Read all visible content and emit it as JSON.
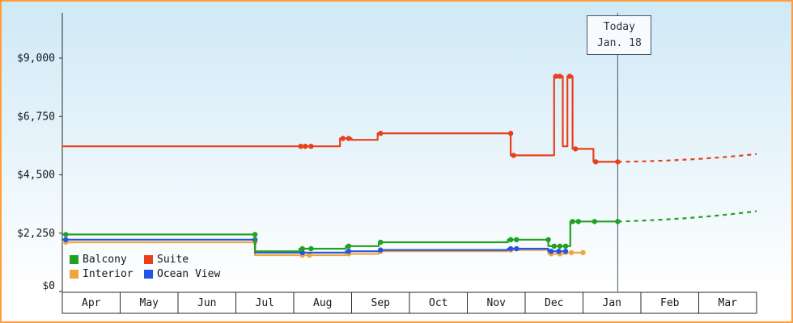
{
  "chart_data": {
    "type": "line",
    "style": "step",
    "title": "",
    "x_axis": {
      "labels": [
        "Apr",
        "May",
        "Jun",
        "Jul",
        "Aug",
        "Sep",
        "Oct",
        "Nov",
        "Dec",
        "Jan",
        "Feb",
        "Mar"
      ]
    },
    "y_axis": {
      "min": 0,
      "max": 9000,
      "ticks": [
        {
          "value": 0,
          "label": "$0"
        },
        {
          "value": 2250,
          "label": "$2,250"
        },
        {
          "value": 4500,
          "label": "$4,500"
        },
        {
          "value": 6750,
          "label": "$6,750"
        },
        {
          "value": 9000,
          "label": "$9,000"
        }
      ]
    },
    "today_marker": {
      "line1": "Today",
      "line2": "Jan. 18",
      "month_x": 9.6
    },
    "series": [
      {
        "name": "Balcony",
        "color": "#22a022",
        "path": [
          [
            0,
            2200
          ],
          [
            3.33,
            2200
          ],
          [
            3.33,
            1550
          ],
          [
            4.1,
            1550
          ],
          [
            4.1,
            1650
          ],
          [
            4.9,
            1650
          ],
          [
            4.9,
            1750
          ],
          [
            5.47,
            1750
          ],
          [
            5.47,
            1900
          ],
          [
            7.7,
            1900
          ],
          [
            7.7,
            2000
          ],
          [
            8.4,
            2000
          ],
          [
            8.4,
            1750
          ],
          [
            8.78,
            1750
          ],
          [
            8.78,
            2700
          ],
          [
            9.6,
            2700
          ]
        ],
        "dots": [
          [
            0.06,
            2200
          ],
          [
            3.33,
            2200
          ],
          [
            4.15,
            1650
          ],
          [
            4.3,
            1650
          ],
          [
            4.95,
            1750
          ],
          [
            5.5,
            1900
          ],
          [
            7.75,
            2000
          ],
          [
            7.85,
            2000
          ],
          [
            8.4,
            2000
          ],
          [
            8.5,
            1750
          ],
          [
            8.6,
            1750
          ],
          [
            8.7,
            1750
          ],
          [
            8.82,
            2700
          ],
          [
            8.92,
            2700
          ],
          [
            9.2,
            2700
          ],
          [
            9.6,
            2700
          ]
        ],
        "projection": {
          "control": [
            10.9,
            2780
          ],
          "to": [
            12,
            3100
          ]
        }
      },
      {
        "name": "Suite",
        "color": "#e8401c",
        "path": [
          [
            0,
            5600
          ],
          [
            4.8,
            5600
          ],
          [
            4.8,
            5900
          ],
          [
            5.0,
            5900
          ],
          [
            5.0,
            5850
          ],
          [
            5.45,
            5850
          ],
          [
            5.45,
            6100
          ],
          [
            7.75,
            6100
          ],
          [
            7.75,
            5250
          ],
          [
            8.5,
            5250
          ],
          [
            8.5,
            8300
          ],
          [
            8.65,
            8300
          ],
          [
            8.65,
            5600
          ],
          [
            8.73,
            5600
          ],
          [
            8.73,
            8300
          ],
          [
            8.82,
            8300
          ],
          [
            8.82,
            5500
          ],
          [
            9.18,
            5500
          ],
          [
            9.18,
            5000
          ],
          [
            9.6,
            5000
          ]
        ],
        "dots": [
          [
            4.12,
            5600
          ],
          [
            4.2,
            5600
          ],
          [
            4.3,
            5600
          ],
          [
            4.85,
            5900
          ],
          [
            4.95,
            5900
          ],
          [
            5.5,
            6100
          ],
          [
            7.75,
            6100
          ],
          [
            7.8,
            5250
          ],
          [
            8.53,
            8300
          ],
          [
            8.6,
            8300
          ],
          [
            8.77,
            8300
          ],
          [
            8.87,
            5500
          ],
          [
            9.22,
            5000
          ],
          [
            9.6,
            5000
          ]
        ],
        "projection": {
          "control": [
            10.9,
            5040
          ],
          "to": [
            12,
            5300
          ]
        }
      },
      {
        "name": "Interior",
        "color": "#efa63c",
        "path": [
          [
            0,
            1900
          ],
          [
            3.33,
            1900
          ],
          [
            3.33,
            1400
          ],
          [
            4.9,
            1400
          ],
          [
            4.9,
            1450
          ],
          [
            5.47,
            1450
          ],
          [
            5.47,
            1550
          ],
          [
            7.7,
            1550
          ],
          [
            7.7,
            1600
          ],
          [
            8.4,
            1600
          ],
          [
            8.4,
            1450
          ],
          [
            8.72,
            1450
          ],
          [
            8.72,
            1500
          ],
          [
            9.0,
            1500
          ]
        ],
        "dots": [
          [
            0.06,
            1900
          ],
          [
            3.33,
            1900
          ],
          [
            4.15,
            1400
          ],
          [
            4.27,
            1400
          ],
          [
            4.95,
            1450
          ],
          [
            5.5,
            1550
          ],
          [
            7.75,
            1600
          ],
          [
            8.45,
            1450
          ],
          [
            8.6,
            1450
          ],
          [
            8.8,
            1500
          ],
          [
            9.0,
            1500
          ]
        ]
      },
      {
        "name": "Ocean View",
        "color": "#2255e6",
        "path": [
          [
            0,
            2000
          ],
          [
            3.33,
            2000
          ],
          [
            3.33,
            1500
          ],
          [
            4.9,
            1500
          ],
          [
            4.9,
            1550
          ],
          [
            5.47,
            1550
          ],
          [
            5.47,
            1600
          ],
          [
            7.7,
            1600
          ],
          [
            7.7,
            1650
          ],
          [
            8.4,
            1650
          ],
          [
            8.4,
            1550
          ],
          [
            8.7,
            1550
          ]
        ],
        "dots": [
          [
            0.06,
            2000
          ],
          [
            3.33,
            2000
          ],
          [
            4.15,
            1500
          ],
          [
            4.95,
            1550
          ],
          [
            5.5,
            1600
          ],
          [
            7.75,
            1650
          ],
          [
            7.85,
            1650
          ],
          [
            8.45,
            1550
          ],
          [
            8.58,
            1550
          ],
          [
            8.7,
            1550
          ]
        ]
      }
    ],
    "draw_order": [
      2,
      3,
      0,
      1
    ],
    "colors": {
      "plot_bg_top": "#cfe9f6",
      "plot_bg_bottom": "#ffffff",
      "axis": "#2a2a2a",
      "today_line": "#4a5568",
      "border": "#ff9d3c",
      "month_cell_bg": "#ffffff"
    }
  }
}
